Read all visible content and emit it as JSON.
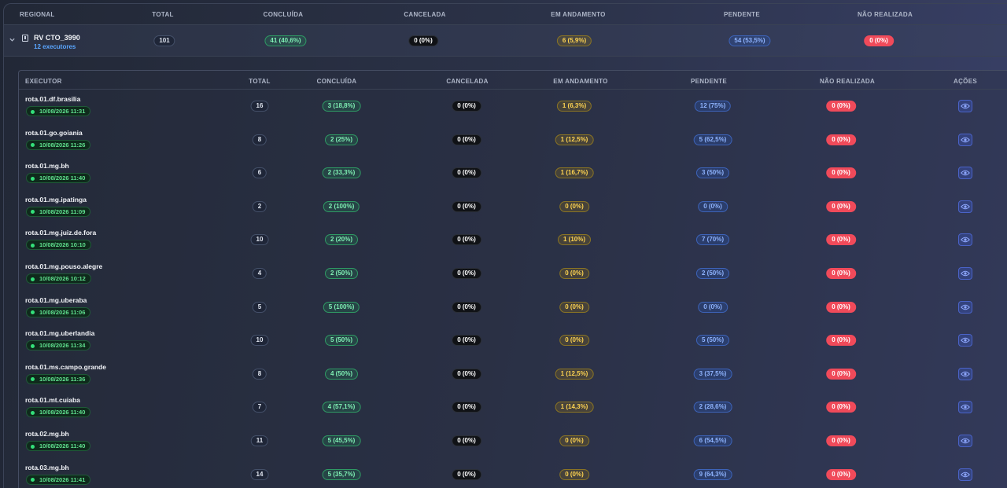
{
  "outer_headers": {
    "regional": "REGIONAL",
    "total": "TOTAL",
    "concluida": "CONCLUÍDA",
    "cancelada": "CANCELADA",
    "em_andamento": "EM ANDAMENTO",
    "pendente": "PENDENTE",
    "nao_realizada": "NÃO REALIZADA"
  },
  "region": {
    "name": "RV CTO_3990",
    "executors": "12 executores",
    "total": "101",
    "concluida": "41 (40,6%)",
    "cancelada": "0 (0%)",
    "em_andamento": "6 (5,9%)",
    "pendente": "54 (53,5%)",
    "nao_realizada": "0 (0%)"
  },
  "inner_headers": {
    "executor": "EXECUTOR",
    "total": "TOTAL",
    "concluida": "CONCLUÍDA",
    "cancelada": "CANCELADA",
    "em_andamento": "EM ANDAMENTO",
    "pendente": "PENDENTE",
    "nao_realizada": "NÃO REALIZADA",
    "acoes": "AÇÕES"
  },
  "executors": [
    {
      "name": "rota.01.df.brasilia",
      "time": "10/08/2026 11:31",
      "total": "16",
      "concluida": "3 (18,8%)",
      "cancelada": "0 (0%)",
      "em_andamento": "1 (6,3%)",
      "pendente": "12 (75%)",
      "nao_realizada": "0 (0%)"
    },
    {
      "name": "rota.01.go.goiania",
      "time": "10/08/2026 11:26",
      "total": "8",
      "concluida": "2 (25%)",
      "cancelada": "0 (0%)",
      "em_andamento": "1 (12,5%)",
      "pendente": "5 (62,5%)",
      "nao_realizada": "0 (0%)"
    },
    {
      "name": "rota.01.mg.bh",
      "time": "10/08/2026 11:40",
      "total": "6",
      "concluida": "2 (33,3%)",
      "cancelada": "0 (0%)",
      "em_andamento": "1 (16,7%)",
      "pendente": "3 (50%)",
      "nao_realizada": "0 (0%)"
    },
    {
      "name": "rota.01.mg.ipatinga",
      "time": "10/08/2026 11:09",
      "total": "2",
      "concluida": "2 (100%)",
      "cancelada": "0 (0%)",
      "em_andamento": "0 (0%)",
      "pendente": "0 (0%)",
      "nao_realizada": "0 (0%)"
    },
    {
      "name": "rota.01.mg.juiz.de.fora",
      "time": "10/08/2026 10:10",
      "total": "10",
      "concluida": "2 (20%)",
      "cancelada": "0 (0%)",
      "em_andamento": "1 (10%)",
      "pendente": "7 (70%)",
      "nao_realizada": "0 (0%)"
    },
    {
      "name": "rota.01.mg.pouso.alegre",
      "time": "10/08/2026 10:12",
      "total": "4",
      "concluida": "2 (50%)",
      "cancelada": "0 (0%)",
      "em_andamento": "0 (0%)",
      "pendente": "2 (50%)",
      "nao_realizada": "0 (0%)"
    },
    {
      "name": "rota.01.mg.uberaba",
      "time": "10/08/2026 11:06",
      "total": "5",
      "concluida": "5 (100%)",
      "cancelada": "0 (0%)",
      "em_andamento": "0 (0%)",
      "pendente": "0 (0%)",
      "nao_realizada": "0 (0%)"
    },
    {
      "name": "rota.01.mg.uberlandia",
      "time": "10/08/2026 11:34",
      "total": "10",
      "concluida": "5 (50%)",
      "cancelada": "0 (0%)",
      "em_andamento": "0 (0%)",
      "pendente": "5 (50%)",
      "nao_realizada": "0 (0%)"
    },
    {
      "name": "rota.01.ms.campo.grande",
      "time": "10/08/2026 11:36",
      "total": "8",
      "concluida": "4 (50%)",
      "cancelada": "0 (0%)",
      "em_andamento": "1 (12,5%)",
      "pendente": "3 (37,5%)",
      "nao_realizada": "0 (0%)"
    },
    {
      "name": "rota.01.mt.cuiaba",
      "time": "10/08/2026 11:40",
      "total": "7",
      "concluida": "4 (57,1%)",
      "cancelada": "0 (0%)",
      "em_andamento": "1 (14,3%)",
      "pendente": "2 (28,6%)",
      "nao_realizada": "0 (0%)"
    },
    {
      "name": "rota.02.mg.bh",
      "time": "10/08/2026 11:40",
      "total": "11",
      "concluida": "5 (45,5%)",
      "cancelada": "0 (0%)",
      "em_andamento": "0 (0%)",
      "pendente": "6 (54,5%)",
      "nao_realizada": "0 (0%)"
    },
    {
      "name": "rota.03.mg.bh",
      "time": "10/08/2026 11:41",
      "total": "14",
      "concluida": "5 (35,7%)",
      "cancelada": "0 (0%)",
      "em_andamento": "0 (0%)",
      "pendente": "9 (64,3%)",
      "nao_realizada": "0 (0%)"
    }
  ],
  "icons": {
    "expand": "chevron-down-icon",
    "region": "building-icon",
    "view": "eye-icon",
    "status": "online-dot-icon"
  },
  "colors": {
    "green": "#2f9a64",
    "yellow": "#ffd451",
    "blue": "#3d63b8",
    "red": "#f04a5a",
    "executors_link": "#5aa6ff"
  }
}
